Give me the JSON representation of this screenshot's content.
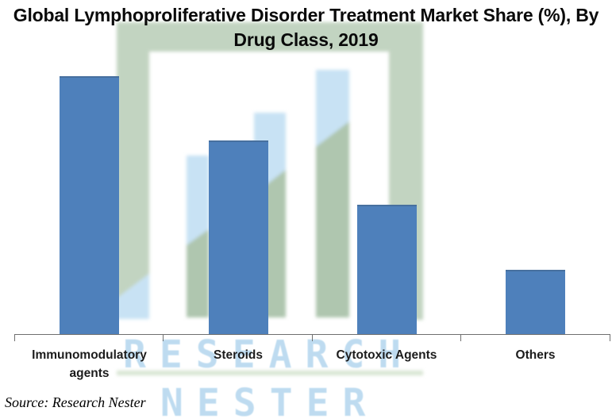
{
  "page": {
    "background": "#ffffff"
  },
  "title": "Global Lymphoproliferative Disorder Treatment Market Share (%), By Drug Class, 2019",
  "source_note": "Source: Research Nester",
  "watermark": {
    "line1": "RESEARCH",
    "line2": "NESTER"
  },
  "colors": {
    "bar": "#4e80bb",
    "bar_top_edge": "#47709f",
    "axis": "#6f6f6f",
    "title_text": "#0a0a0a",
    "label_text": "#1c1c1c",
    "watermark_green": "#c2d4c1",
    "watermark_green_blend": "#afc6af",
    "watermark_green_light": "#d8e5d3",
    "watermark_blue": "#c8e2f4",
    "watermark_text_blue": "#b9d9ef"
  },
  "chart_data": {
    "type": "bar",
    "title": "Global Lymphoproliferative Disorder Treatment Market Share (%), By Drug Class, 2019",
    "categories": [
      "Immunomodulatory agents",
      "Steroids",
      "Cytotoxic Agents",
      "Others"
    ],
    "values": [
      40,
      30,
      20,
      10
    ],
    "unit": "%",
    "xlabel": "",
    "ylabel": "",
    "y_axis_visible": false,
    "gridlines": false,
    "legend": false,
    "annotations": [],
    "source": "Research Nester"
  }
}
